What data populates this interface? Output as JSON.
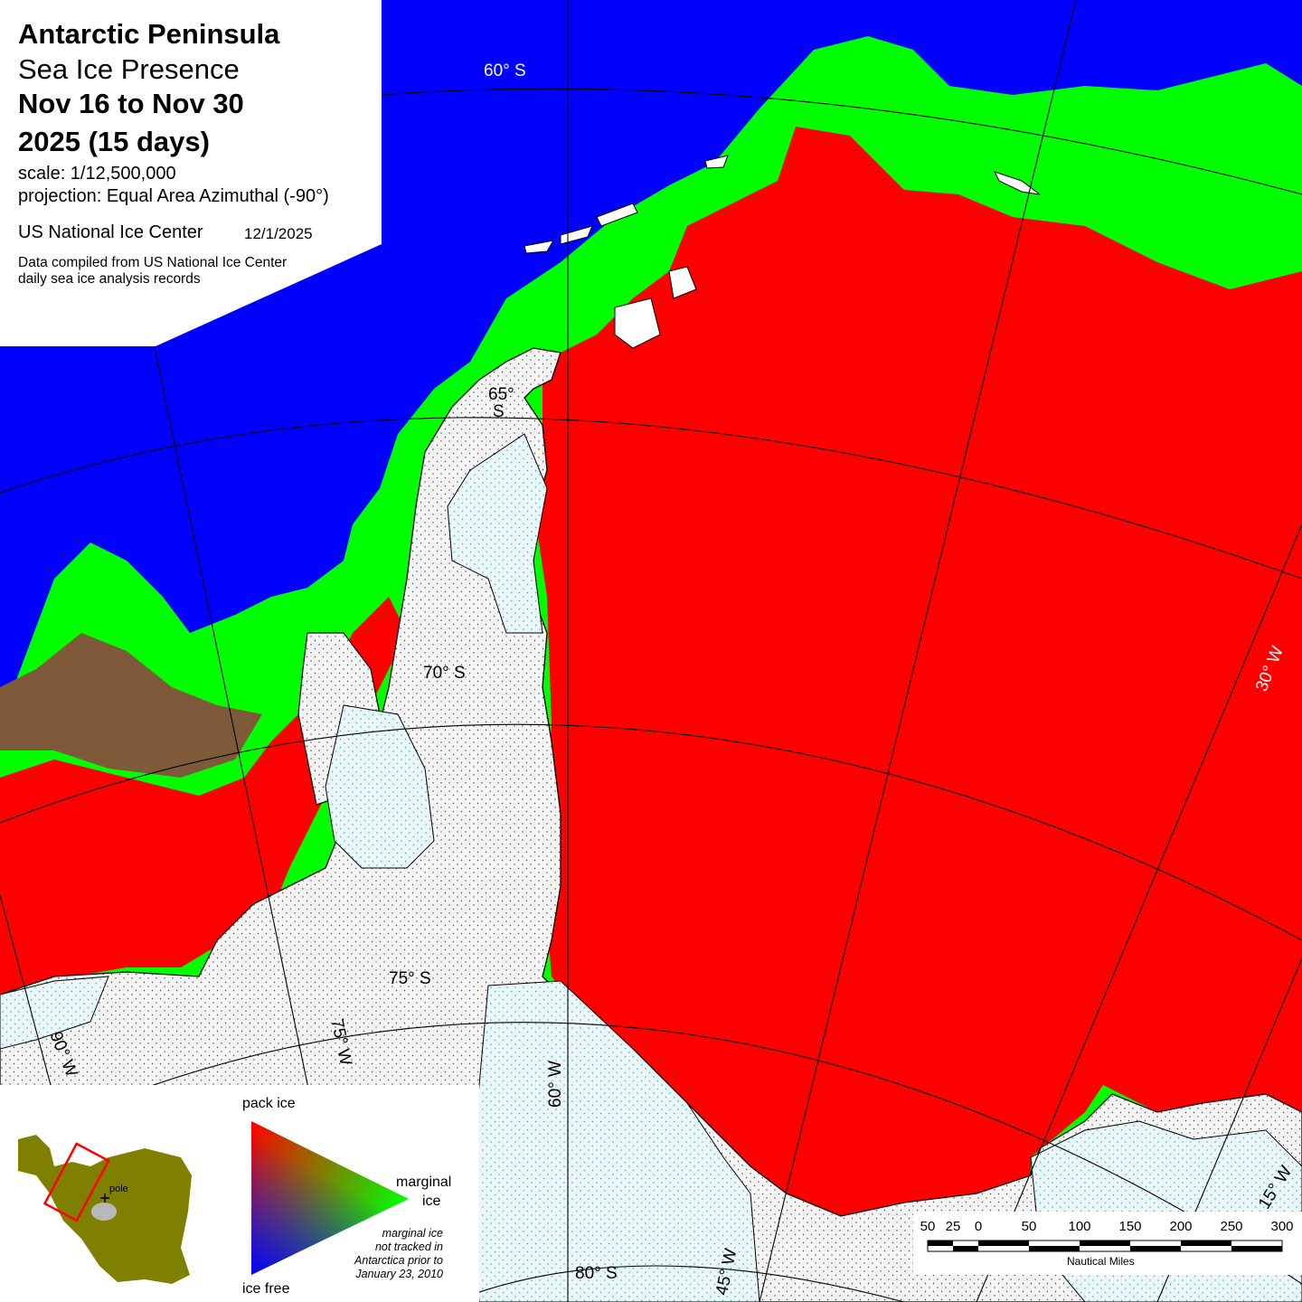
{
  "title": {
    "line1": "Antarctic Peninsula",
    "line2": "Sea Ice Presence",
    "line3": "Nov 16 to Nov 30",
    "line4": "2025   (15 days)",
    "scale": "scale: 1/12,500,000",
    "projection": "projection: Equal Area Azimuthal (-90°)",
    "agency": "US National Ice Center",
    "date": "12/1/2025",
    "source_line1": "Data compiled from US National Ice Center",
    "source_line2": "daily sea ice analysis records"
  },
  "grid_labels": {
    "lat60": "60°  S",
    "lat65a": "65°",
    "lat65b": "S",
    "lat70": "70°  S",
    "lat75": "75°  S",
    "lat80": "80°  S",
    "lon90": "90°  W",
    "lon75": "75°  W",
    "lon60": "60°  W",
    "lon45": "45°  W",
    "lon30": "30°  W",
    "lon15": "15°  W"
  },
  "legend": {
    "pack_ice": "pack ice",
    "marginal_ice_line1": "marginal",
    "marginal_ice_line2": "ice",
    "ice_free": "ice free",
    "pole": "pole",
    "note_line1": "marginal ice",
    "note_line2": "not tracked in",
    "note_line3": "Antarctica prior to",
    "note_line4": "January 23, 2010",
    "colors": {
      "pack_ice": "#ff0000",
      "marginal_ice": "#00ff00",
      "ice_free": "#0000ff",
      "land": "#808000"
    }
  },
  "scale_bar": {
    "ticks": [
      "50",
      "25",
      "0",
      "50",
      "100",
      "150",
      "200",
      "250",
      "300"
    ],
    "unit": "Nautical Miles"
  },
  "colors": {
    "open_water": "#0000ff",
    "pack_ice": "#ff0000",
    "marginal_ice": "#00ff00",
    "land": "#f2f2f2",
    "ice_shelf": "#e6f4f8"
  }
}
